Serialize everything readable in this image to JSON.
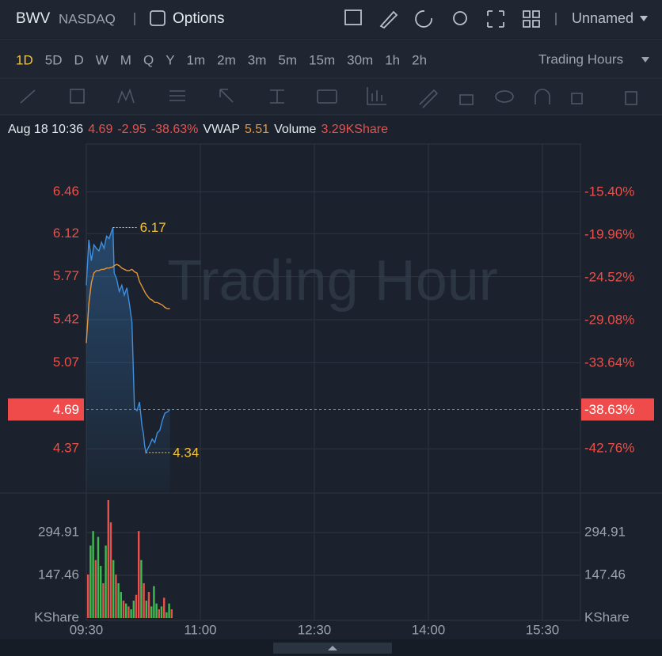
{
  "header": {
    "symbol": "BWV",
    "exchange": "NASDAQ",
    "options": "Options",
    "layout": "Unnamed"
  },
  "periods": [
    "1D",
    "5D",
    "D",
    "W",
    "M",
    "Q",
    "Y",
    "1m",
    "2m",
    "3m",
    "5m",
    "15m",
    "30m",
    "1h",
    "2h"
  ],
  "session": "Trading Hours",
  "info": {
    "time": "Aug 18 10:36",
    "price": "4.69",
    "change": "-2.95",
    "change_pct": "-38.63%",
    "vwap_label": "VWAP",
    "vwap": "5.51",
    "volume_label": "Volume",
    "volume": "3.29KShare"
  },
  "chart_data": {
    "type": "line",
    "watermark": "Trading Hour",
    "x": [
      "09:30",
      "09:32",
      "09:34",
      "09:36",
      "09:38",
      "09:40",
      "09:42",
      "09:44",
      "09:46",
      "09:48",
      "09:51",
      "09:52",
      "09:54",
      "09:56",
      "09:58",
      "10:00",
      "10:02",
      "10:04",
      "10:06",
      "10:07",
      "10:08",
      "10:10",
      "10:12",
      "10:14",
      "10:15",
      "10:16",
      "10:17",
      "10:20",
      "10:22",
      "10:24",
      "10:26",
      "10:28",
      "10:30",
      "10:32",
      "10:34",
      "10:36"
    ],
    "series": [
      {
        "color": "#3d8fe0",
        "values": [
          5.7,
          6.07,
          5.9,
          6.03,
          6.0,
          5.98,
          6.05,
          6.0,
          6.1,
          6.08,
          6.17,
          5.8,
          5.75,
          5.65,
          5.7,
          5.62,
          5.68,
          5.55,
          5.4,
          5.05,
          4.7,
          4.68,
          4.75,
          4.55,
          4.5,
          4.4,
          4.34,
          4.4,
          4.45,
          4.42,
          4.5,
          4.52,
          4.6,
          4.66,
          4.67,
          4.69
        ]
      },
      {
        "color": "#e6963a",
        "values": [
          5.23,
          5.55,
          5.72,
          5.8,
          5.82,
          5.82,
          5.83,
          5.83,
          5.84,
          5.84,
          5.85,
          5.86,
          5.87,
          5.86,
          5.84,
          5.83,
          5.82,
          5.82,
          5.83,
          5.82,
          5.81,
          5.8,
          5.73,
          5.69,
          5.67,
          5.65,
          5.63,
          5.59,
          5.58,
          5.56,
          5.56,
          5.55,
          5.54,
          5.52,
          5.51,
          5.51
        ]
      }
    ],
    "xlim": [
      "09:30",
      "16:00"
    ],
    "xticks": [
      "09:30",
      "11:00",
      "12:30",
      "14:00",
      "15:30"
    ],
    "ylim": [
      4.03,
      6.83
    ],
    "yticks": [
      6.46,
      6.12,
      5.77,
      5.42,
      5.07,
      4.37
    ],
    "y2lim": [
      -47.24,
      -10.5
    ],
    "y2ticks": [
      {
        "value": -15.4,
        "label": "-15.40%"
      },
      {
        "value": -19.96,
        "label": "-19.96%"
      },
      {
        "value": -24.52,
        "label": "-24.52%"
      },
      {
        "value": -29.08,
        "label": "-29.08%"
      },
      {
        "value": -33.64,
        "label": "-33.64%"
      },
      {
        "value": -42.76,
        "label": "-42.76%"
      }
    ],
    "last": 4.69,
    "last_pct": {
      "value": -38.63,
      "label": "-38.63%"
    },
    "high": {
      "x": "09:51",
      "value": 6.17
    },
    "low": {
      "x": "10:17",
      "value": 4.34
    },
    "grid": true,
    "volume": {
      "x": [
        "09:30",
        "09:32",
        "09:34",
        "09:36",
        "09:38",
        "09:40",
        "09:42",
        "09:44",
        "09:46",
        "09:48",
        "09:50",
        "09:52",
        "09:54",
        "09:56",
        "09:58",
        "10:00",
        "10:02",
        "10:04",
        "10:06",
        "10:08",
        "10:10",
        "10:12",
        "10:14",
        "10:16",
        "10:18",
        "10:20",
        "10:22",
        "10:24",
        "10:26",
        "10:28",
        "10:30",
        "10:32",
        "10:34",
        "10:36"
      ],
      "values": [
        150,
        250,
        300,
        200,
        280,
        180,
        120,
        250,
        407,
        330,
        200,
        150,
        120,
        90,
        60,
        50,
        40,
        30,
        60,
        80,
        300,
        200,
        120,
        60,
        90,
        40,
        110,
        50,
        30,
        40,
        70,
        20,
        50,
        30
      ],
      "colors": [
        "#e8514a",
        "#3fb950",
        "#3fb950",
        "#e8514a",
        "#3fb950",
        "#3fb950",
        "#e8514a",
        "#3fb950",
        "#e8514a",
        "#e8514a",
        "#3fb950",
        "#e8514a",
        "#3fb950",
        "#3fb950",
        "#e8514a",
        "#3fb950",
        "#e8514a",
        "#3fb950",
        "#3fb950",
        "#e8514a",
        "#e8514a",
        "#3fb950",
        "#e8514a",
        "#3fb950",
        "#e8514a",
        "#3fb950",
        "#3fb950",
        "#3fb950",
        "#e8514a",
        "#3fb950",
        "#e8514a",
        "#3fb950",
        "#3fb950",
        "#e8514a"
      ],
      "ylim": [
        0,
        426
      ],
      "yticks": [
        294.91,
        147.46,
        {
          "value": 0,
          "label": "KShare"
        }
      ]
    }
  }
}
